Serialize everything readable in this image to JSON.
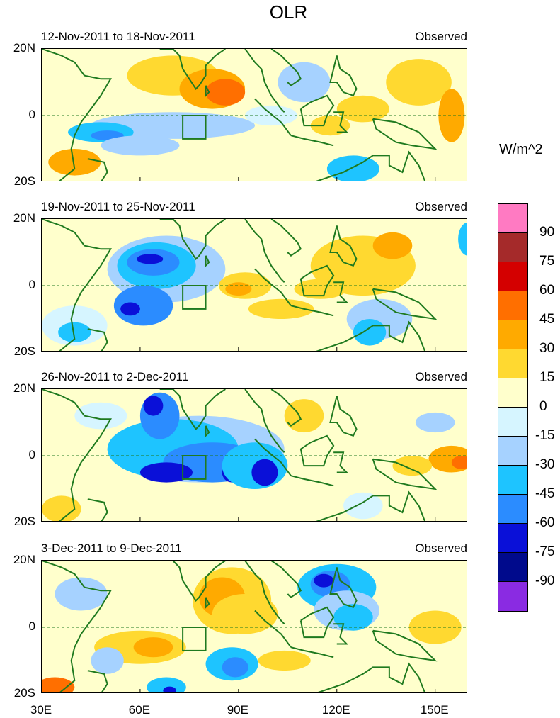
{
  "title": "OLR",
  "units_label": "W/m^2",
  "panels": [
    {
      "period": "12-Nov-2011 to 18-Nov-2011",
      "source": "Observed"
    },
    {
      "period": "19-Nov-2011 to 25-Nov-2011",
      "source": "Observed"
    },
    {
      "period": "26-Nov-2011 to 2-Dec-2011",
      "source": "Observed"
    },
    {
      "period": "3-Dec-2011 to 9-Dec-2011",
      "source": "Observed"
    }
  ],
  "lat_labels": [
    "20N",
    "0",
    "20S"
  ],
  "lon_labels": [
    "30E",
    "60E",
    "90E",
    "120E",
    "150E"
  ],
  "colorbar": {
    "labels": [
      "90",
      "75",
      "60",
      "45",
      "30",
      "15",
      "0",
      "-15",
      "-30",
      "-45",
      "-60",
      "-75",
      "-90"
    ],
    "colors": [
      "#ff7ac2",
      "#a52a2a",
      "#d40000",
      "#ff6f00",
      "#ffaa00",
      "#ffd930",
      "#ffffcc",
      "#d6f5ff",
      "#a6d2ff",
      "#1ec4ff",
      "#2b8cff",
      "#0a10d8",
      "#000a8c",
      "#8a2be2"
    ]
  },
  "map_colors": {
    "neutral": "#ffffcc",
    "land_outline": "#1f7a1f",
    "box_outline": "#1f7a1f",
    "equator_line": "#1f7a1f"
  }
}
